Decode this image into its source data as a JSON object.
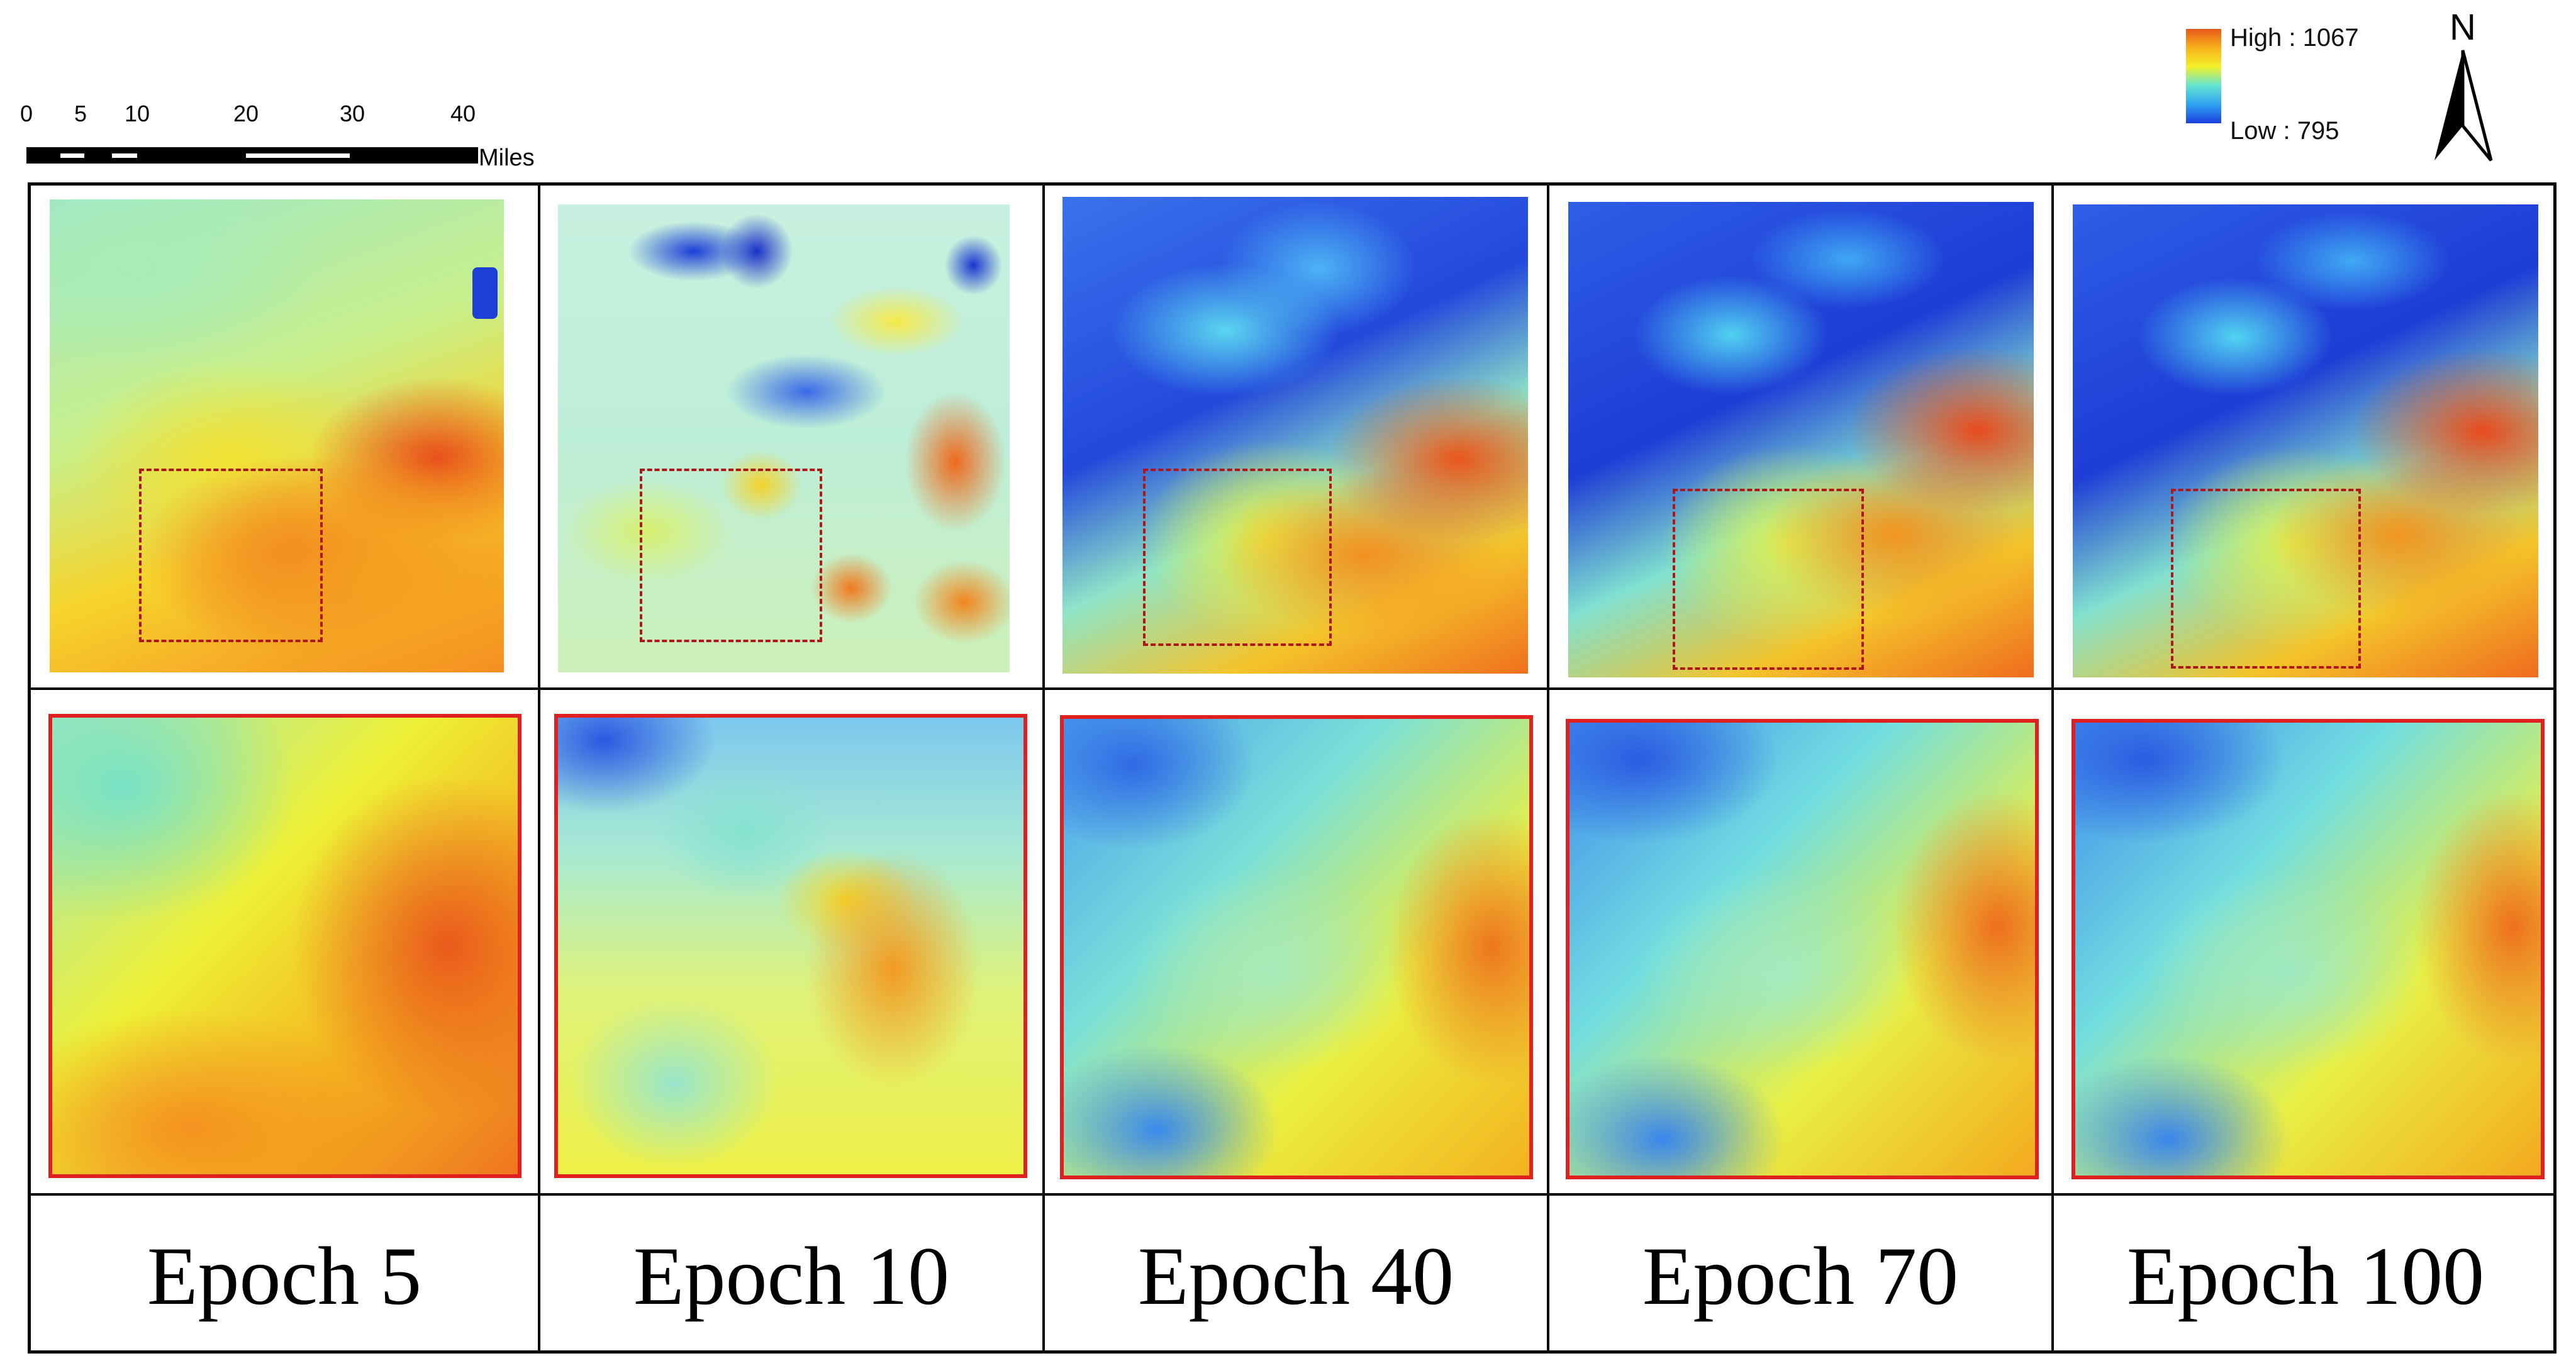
{
  "scale_bar": {
    "ticks": [
      "0",
      "5",
      "10",
      "20",
      "30",
      "40"
    ],
    "unit": "Miles"
  },
  "legend": {
    "high": "High : 1067",
    "low": "Low : 795",
    "colors": [
      "#e8581a",
      "#f7b21c",
      "#f3f02a",
      "#63e4d0",
      "#2fa3f2",
      "#1a3fe0"
    ]
  },
  "north_arrow": {
    "label": "N"
  },
  "panels": [
    {
      "epoch": "Epoch 5"
    },
    {
      "epoch": "Epoch 10"
    },
    {
      "epoch": "Epoch 40"
    },
    {
      "epoch": "Epoch 70"
    },
    {
      "epoch": "Epoch 100"
    }
  ]
}
